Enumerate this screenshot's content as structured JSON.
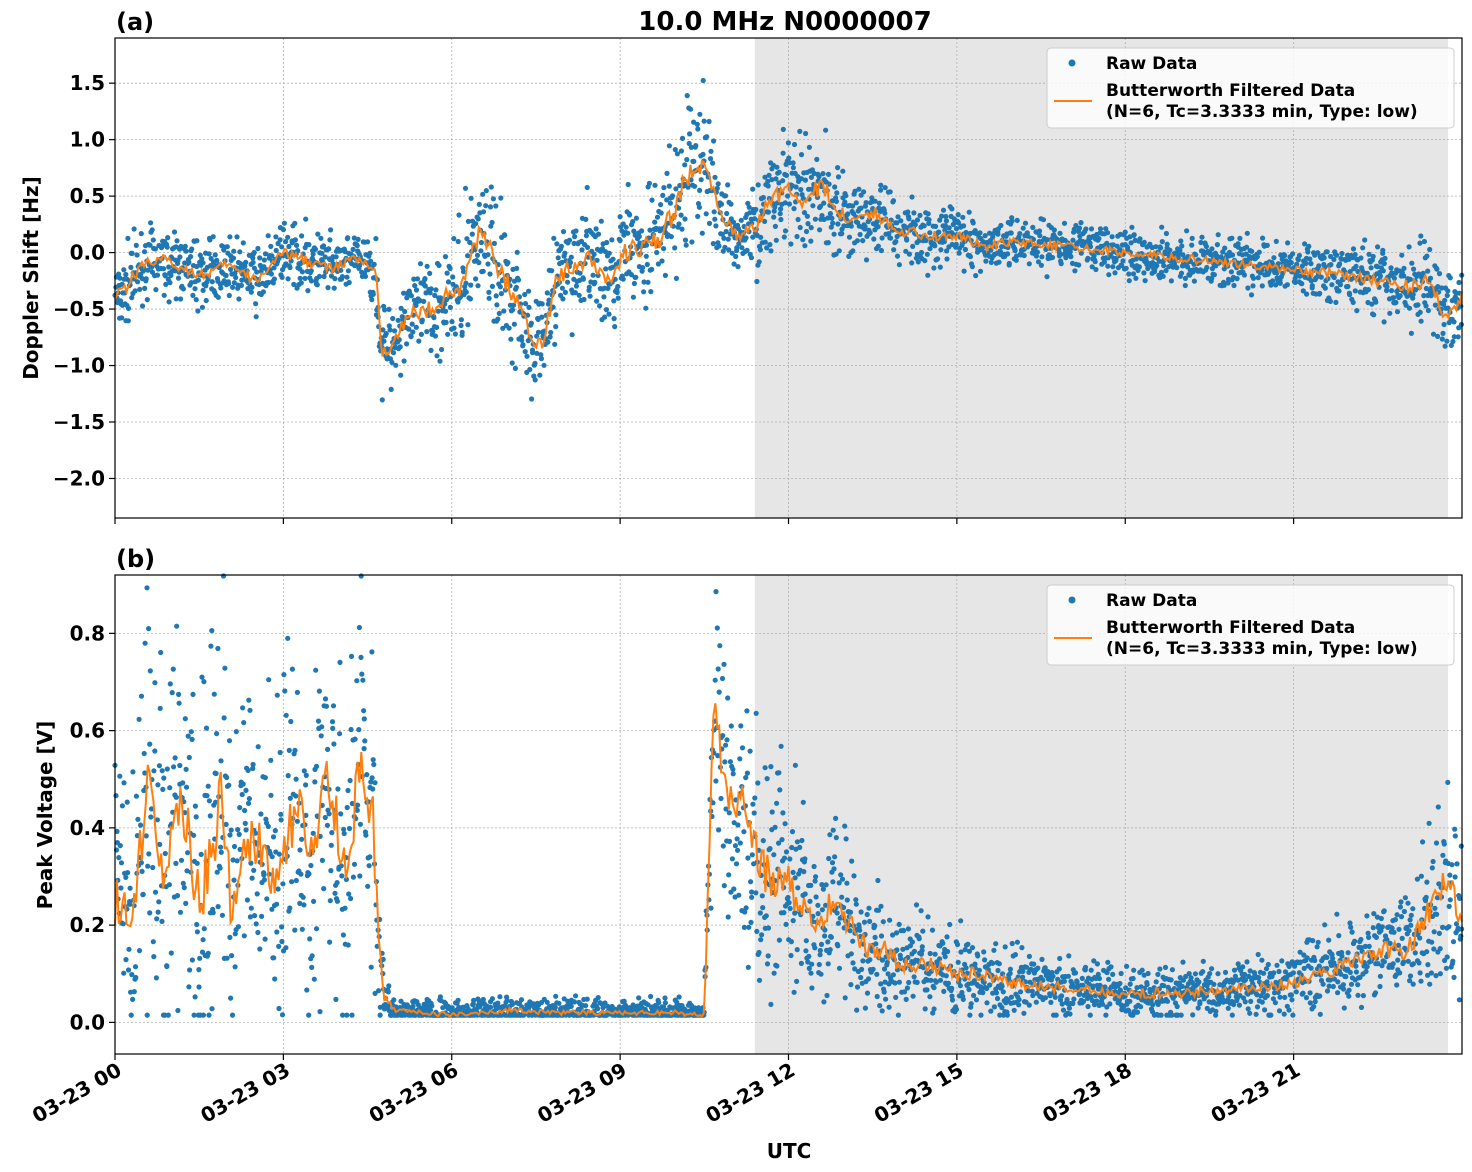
{
  "figure": {
    "title": "10.0 MHz N0000007",
    "xlabel": "UTC",
    "x_tick_labels": [
      "03-23 00",
      "03-23 03",
      "03-23 06",
      "03-23 09",
      "03-23 12",
      "03-23 15",
      "03-23 18",
      "03-23 21"
    ]
  },
  "colors": {
    "raw": "#1f77b4",
    "filtered": "#ff7f0e",
    "shade": "#e6e6e6",
    "grid": "#b0b0b0"
  },
  "chart_data": [
    {
      "panel": "(a)",
      "type": "scatter",
      "ylabel": "Doppler Shift [Hz]",
      "xlim_hours": [
        0,
        24
      ],
      "ylim": [
        -2.35,
        1.9
      ],
      "yticks": [
        1.5,
        1.0,
        0.5,
        0.0,
        -0.5,
        -1.0,
        -1.5,
        -2.0
      ],
      "ytick_labels": [
        "1.5",
        "1.0",
        "0.5",
        "0.0",
        "−0.5",
        "−1.0",
        "−1.5",
        "−2.0"
      ],
      "shaded_span_hours": [
        11.4,
        23.75
      ],
      "grid": true,
      "legend_position": "top-right",
      "legend": [
        "Raw Data",
        "Butterworth Filtered Data",
        "(N=6, Tc=3.3333 min, Type: low)"
      ],
      "series": [
        {
          "name": "Butterworth Filtered Data",
          "style": "line",
          "x_hours": [
            0,
            0.2,
            0.5,
            0.8,
            1.0,
            1.3,
            1.6,
            2.0,
            2.5,
            3.0,
            3.3,
            3.6,
            3.9,
            4.2,
            4.5,
            4.65,
            4.75,
            4.85,
            5.0,
            5.3,
            5.6,
            5.9,
            6.2,
            6.4,
            6.6,
            6.9,
            7.2,
            7.4,
            7.6,
            7.9,
            8.2,
            8.5,
            8.8,
            9.1,
            9.4,
            9.7,
            9.9,
            10.1,
            10.3,
            10.5,
            10.8,
            11.1,
            11.4,
            11.7,
            12.0,
            12.3,
            12.6,
            12.9,
            13.2,
            13.5,
            14.0,
            14.5,
            15.0,
            15.5,
            16.0,
            17.0,
            18.0,
            19.0,
            20.0,
            21.0,
            22.0,
            22.5,
            23.0,
            23.4,
            23.7,
            24.0
          ],
          "y": [
            -0.35,
            -0.3,
            -0.1,
            -0.05,
            -0.1,
            -0.15,
            -0.2,
            -0.1,
            -0.25,
            0.0,
            -0.05,
            -0.1,
            -0.15,
            -0.05,
            -0.1,
            -0.2,
            -0.9,
            -0.85,
            -0.7,
            -0.55,
            -0.5,
            -0.4,
            -0.3,
            0.15,
            0.1,
            -0.2,
            -0.45,
            -0.75,
            -0.8,
            -0.2,
            -0.1,
            -0.05,
            -0.25,
            0.0,
            0.05,
            0.1,
            0.3,
            0.55,
            0.75,
            0.8,
            0.3,
            0.15,
            0.2,
            0.5,
            0.55,
            0.45,
            0.6,
            0.35,
            0.3,
            0.35,
            0.2,
            0.15,
            0.15,
            0.05,
            0.1,
            0.05,
            0.0,
            -0.05,
            -0.1,
            -0.15,
            -0.2,
            -0.25,
            -0.3,
            -0.25,
            -0.55,
            -0.4
          ]
        },
        {
          "name": "Raw Data",
          "style": "points",
          "spread": [
            0.25,
            0.25,
            0.2,
            0.2,
            0.2,
            0.2,
            0.2,
            0.15,
            0.2,
            0.15,
            0.2,
            0.2,
            0.2,
            0.15,
            0.15,
            0.2,
            0.3,
            0.3,
            0.3,
            0.3,
            0.3,
            0.35,
            0.4,
            0.4,
            0.4,
            0.4,
            0.35,
            0.3,
            0.3,
            0.35,
            0.35,
            0.35,
            0.3,
            0.35,
            0.35,
            0.4,
            0.45,
            0.45,
            0.45,
            0.4,
            0.25,
            0.2,
            0.25,
            0.3,
            0.35,
            0.35,
            0.35,
            0.3,
            0.25,
            0.25,
            0.2,
            0.2,
            0.2,
            0.15,
            0.15,
            0.15,
            0.15,
            0.15,
            0.15,
            0.15,
            0.2,
            0.2,
            0.25,
            0.25,
            0.25,
            0.25
          ]
        }
      ]
    },
    {
      "panel": "(b)",
      "type": "scatter",
      "ylabel": "Peak Voltage [V]",
      "xlim_hours": [
        0,
        24
      ],
      "ylim": [
        -0.065,
        0.92
      ],
      "yticks": [
        0.8,
        0.6,
        0.4,
        0.2,
        0.0
      ],
      "ytick_labels": [
        "0.8",
        "0.6",
        "0.4",
        "0.2",
        "0.0"
      ],
      "shaded_span_hours": [
        11.4,
        23.75
      ],
      "grid": true,
      "legend_position": "top-right",
      "legend": [
        "Raw Data",
        "Butterworth Filtered Data",
        "(N=6, Tc=3.3333 min, Type: low)"
      ],
      "series": [
        {
          "name": "Butterworth Filtered Data",
          "style": "line",
          "x_hours": [
            0,
            0.3,
            0.6,
            0.9,
            1.2,
            1.5,
            1.7,
            1.9,
            2.1,
            2.3,
            2.6,
            2.9,
            3.2,
            3.5,
            3.8,
            4.1,
            4.4,
            4.6,
            4.7,
            4.8,
            5.0,
            5.5,
            6.0,
            7.0,
            8.0,
            9.0,
            10.0,
            10.5,
            10.6,
            10.7,
            10.8,
            11.0,
            11.2,
            11.4,
            11.6,
            11.9,
            12.2,
            12.5,
            12.8,
            13.1,
            13.4,
            13.7,
            14.0,
            14.5,
            15.0,
            15.5,
            16.0,
            17.0,
            18.0,
            19.0,
            20.0,
            21.0,
            22.0,
            22.5,
            23.0,
            23.3,
            23.5,
            23.8,
            24.0
          ],
          "y": [
            0.25,
            0.2,
            0.5,
            0.3,
            0.45,
            0.25,
            0.35,
            0.45,
            0.2,
            0.4,
            0.35,
            0.25,
            0.45,
            0.35,
            0.5,
            0.3,
            0.55,
            0.4,
            0.15,
            0.05,
            0.025,
            0.02,
            0.015,
            0.025,
            0.02,
            0.02,
            0.02,
            0.015,
            0.4,
            0.7,
            0.55,
            0.45,
            0.5,
            0.35,
            0.3,
            0.3,
            0.25,
            0.2,
            0.25,
            0.2,
            0.15,
            0.15,
            0.12,
            0.12,
            0.1,
            0.1,
            0.08,
            0.07,
            0.06,
            0.06,
            0.07,
            0.08,
            0.12,
            0.15,
            0.15,
            0.2,
            0.25,
            0.3,
            0.2
          ]
        },
        {
          "name": "Raw Data",
          "style": "points",
          "spread": [
            0.2,
            0.2,
            0.25,
            0.25,
            0.25,
            0.25,
            0.3,
            0.3,
            0.25,
            0.25,
            0.25,
            0.25,
            0.25,
            0.25,
            0.25,
            0.25,
            0.25,
            0.25,
            0.1,
            0.03,
            0.02,
            0.02,
            0.02,
            0.02,
            0.02,
            0.02,
            0.02,
            0.02,
            0.15,
            0.2,
            0.2,
            0.2,
            0.2,
            0.2,
            0.2,
            0.18,
            0.15,
            0.12,
            0.12,
            0.1,
            0.09,
            0.08,
            0.07,
            0.07,
            0.06,
            0.05,
            0.05,
            0.04,
            0.04,
            0.04,
            0.04,
            0.05,
            0.06,
            0.07,
            0.08,
            0.1,
            0.12,
            0.15,
            0.12
          ]
        }
      ]
    }
  ]
}
